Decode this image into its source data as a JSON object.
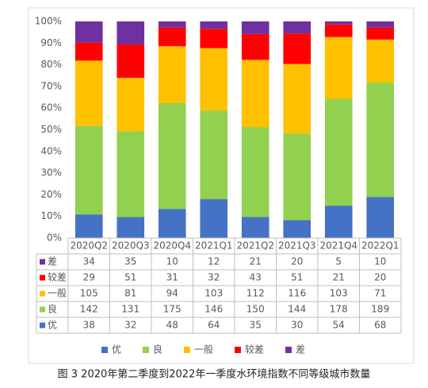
{
  "chart_data": {
    "type": "bar",
    "stack": "percent",
    "caption": "图 3 2020年第二季度到2022年一季度水环境指数不同等级城市数量",
    "categories": [
      "2020Q2",
      "2020Q3",
      "2020Q4",
      "2021Q1",
      "2021Q2",
      "2021Q3",
      "2021Q4",
      "2022Q1"
    ],
    "series": [
      {
        "name": "优",
        "color": "#4472c4",
        "values": [
          38,
          32,
          48,
          64,
          35,
          30,
          54,
          68
        ]
      },
      {
        "name": "良",
        "color": "#92d050",
        "values": [
          142,
          131,
          175,
          146,
          150,
          144,
          178,
          189
        ]
      },
      {
        "name": "一般",
        "color": "#ffc000",
        "values": [
          105,
          81,
          94,
          103,
          112,
          116,
          103,
          71
        ]
      },
      {
        "name": "较差",
        "color": "#ff0000",
        "values": [
          29,
          51,
          31,
          32,
          43,
          51,
          21,
          20
        ]
      },
      {
        "name": "差",
        "color": "#7030a0",
        "values": [
          34,
          35,
          10,
          12,
          21,
          20,
          5,
          10
        ]
      }
    ],
    "ylim": [
      0,
      100
    ],
    "yticks": [
      {
        "value": 0,
        "label": "0%"
      },
      {
        "value": 10,
        "label": "10%"
      },
      {
        "value": 20,
        "label": "20%"
      },
      {
        "value": 30,
        "label": "30%"
      },
      {
        "value": 40,
        "label": "40%"
      },
      {
        "value": 50,
        "label": "50%"
      },
      {
        "value": 60,
        "label": "60%"
      },
      {
        "value": 70,
        "label": "70%"
      },
      {
        "value": 80,
        "label": "80%"
      },
      {
        "value": 90,
        "label": "90%"
      },
      {
        "value": 100,
        "label": "100%"
      }
    ],
    "grid": false
  }
}
